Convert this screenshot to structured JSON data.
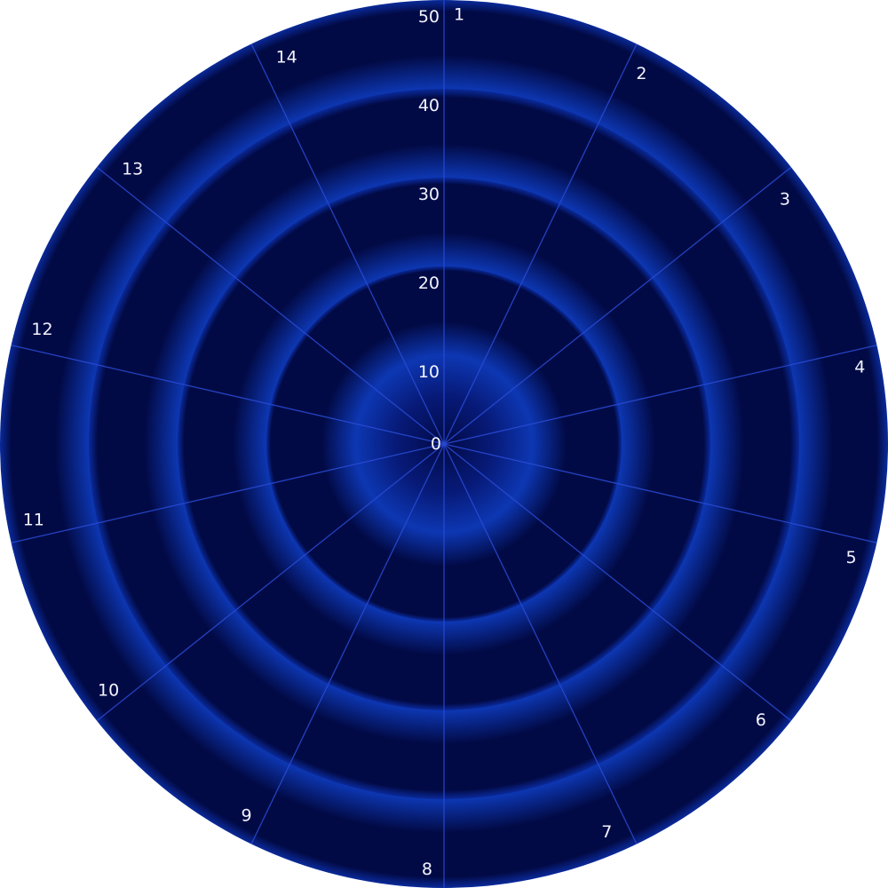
{
  "chart_data": {
    "type": "polar-grid",
    "radial_axis": {
      "min": 0,
      "max": 50,
      "ticks": [
        0,
        10,
        20,
        30,
        40,
        50
      ],
      "tick_labels": [
        "0",
        "10",
        "20",
        "30",
        "40",
        "50"
      ]
    },
    "angular_axis": {
      "categories": [
        "1",
        "2",
        "3",
        "4",
        "5",
        "6",
        "7",
        "8",
        "9",
        "10",
        "11",
        "12",
        "13",
        "14"
      ],
      "direction": "clockwise",
      "start": "top"
    },
    "series": [],
    "grid": true,
    "legend": "none",
    "colors": {
      "background_dark": "#020a45",
      "band_edge": "#0d37b3",
      "spoke": "#2a4bd6",
      "label": "#f2f4ff"
    }
  }
}
